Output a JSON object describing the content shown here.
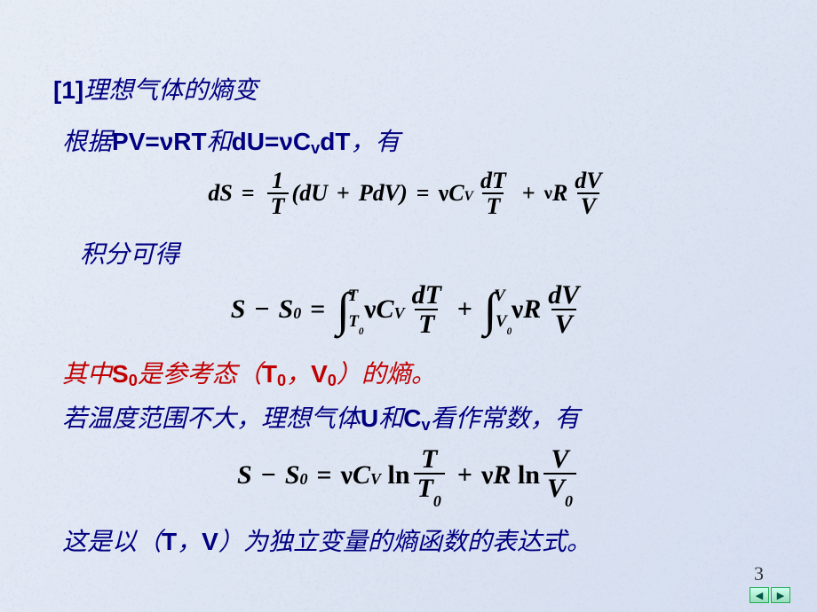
{
  "background": {
    "color_light": "#e8edf5",
    "color_mid": "#d5def0",
    "noise_tint": "#b8c5e0"
  },
  "title": {
    "bracket_open": "[",
    "num": "1",
    "bracket_close": " ]",
    "text": " 理想气体的熵变"
  },
  "line_pv": {
    "pre": "根据 ",
    "pv": "PV=",
    "nu1": "ν",
    "rt": "RT",
    "and": "和",
    "du": "dU= ",
    "nu2": "ν",
    "cv": " C",
    "cv_sub": "v",
    "dt": " dT",
    "post": " ，有"
  },
  "eq1": {
    "dS": "dS",
    "eq": "=",
    "one": "1",
    "T": "T",
    "lp": "(",
    "dU": "dU",
    "plus": "+",
    "PdV": "PdV",
    "rp": ")",
    "nu": "ν",
    "Cv": "C",
    "Cv_sub": "V",
    "dT": "dT",
    "R": "R",
    "dV": "dV",
    "V": "V"
  },
  "line_int": "积分可得",
  "eq2": {
    "S": "S",
    "minus": "−",
    "S0": "S",
    "S0_sub": "0",
    "eq": "=",
    "int": "∫",
    "T0": "T",
    "T0_sub": "0",
    "T": "T",
    "nu": "ν",
    "Cv": "C",
    "Cv_sub": "V",
    "dT": "dT",
    "plus": "+",
    "V0": "V",
    "V0_sub": "0",
    "V": "V",
    "R": "R",
    "dV": "dV"
  },
  "line_s0": {
    "pre": "其中",
    "S0": "S",
    "S0_sub": "0",
    "mid": "是参考态（",
    "T0": "T",
    "T0_sub": "0",
    "comma": "，",
    "V0": "V",
    "V0_sub": "0",
    "post": "）的熵。"
  },
  "line_const": {
    "pre": "若温度范围不大，理想气体",
    "U": "U",
    "and": "和 ",
    "Cv": "C",
    "Cv_sub": "v",
    "post": "看作常数，有"
  },
  "eq3": {
    "S": "S",
    "minus": "−",
    "S0": "S",
    "S0_sub": "0",
    "eq": "=",
    "nu": "ν",
    "Cv": "C",
    "Cv_sub": "V",
    "ln": "ln",
    "T": "T",
    "T0": "T",
    "T0_sub": "0",
    "plus": "+",
    "R": "R",
    "V": "V",
    "V0": "V",
    "V0_sub": "0"
  },
  "line_final": {
    "pre": "这是以（",
    "T": "T",
    "comma": "，",
    "V": "V",
    "post": "）为独立变量的熵函数的表达式。"
  },
  "page_number": "3",
  "nav": {
    "prev": "◀",
    "next": "▶"
  }
}
